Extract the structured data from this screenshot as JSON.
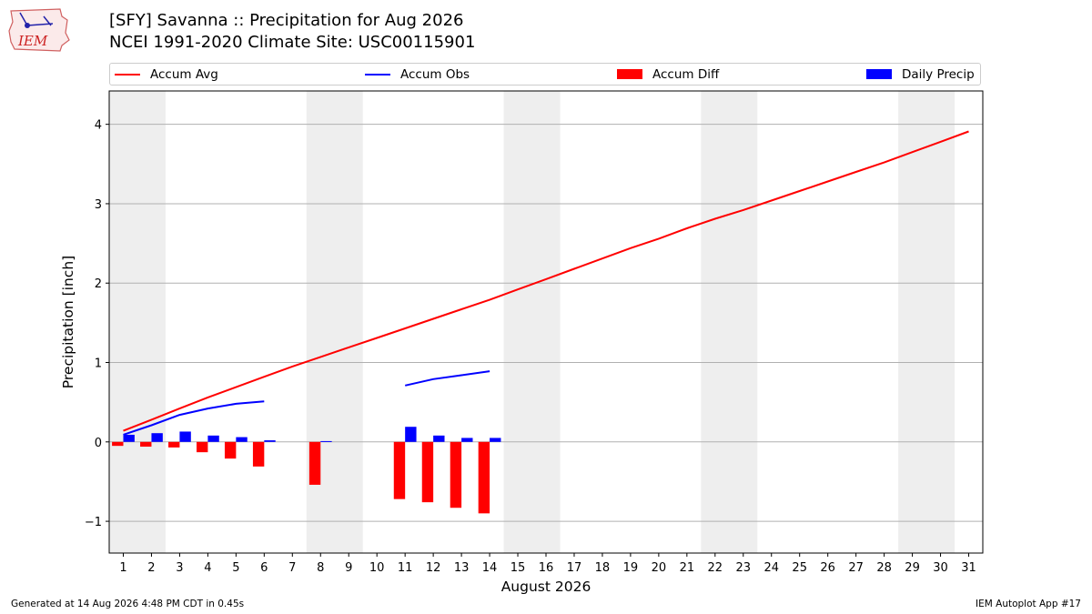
{
  "header": {
    "logo_text": "IEM",
    "title_line1": "[SFY] Savanna :: Precipitation for Aug 2026",
    "title_line2": "NCEI 1991-2020 Climate Site: USC00115901"
  },
  "footer": {
    "generated": "Generated at 14 Aug 2026 4:48 PM CDT in 0.45s",
    "app": "IEM Autoplot App #17"
  },
  "colors": {
    "accum_avg": "#ff0000",
    "accum_obs": "#0000ff",
    "accum_diff": "#ff0000",
    "daily_precip": "#0000ff",
    "weekend_band": "#eeeeee",
    "grid": "#b0b0b0"
  },
  "chart_data": {
    "type": "bar",
    "xlabel": "August 2026",
    "ylabel": "Precipitation [inch]",
    "xlim": [
      0.5,
      31.5
    ],
    "ylim": [
      -1.4,
      4.42
    ],
    "yticks": [
      -1,
      0,
      1,
      2,
      3,
      4
    ],
    "ytick_labels": [
      "−1",
      "0",
      "1",
      "2",
      "3",
      "4"
    ],
    "days": [
      1,
      2,
      3,
      4,
      5,
      6,
      7,
      8,
      9,
      10,
      11,
      12,
      13,
      14,
      15,
      16,
      17,
      18,
      19,
      20,
      21,
      22,
      23,
      24,
      25,
      26,
      27,
      28,
      29,
      30,
      31
    ],
    "weekend_days": [
      1,
      2,
      8,
      9,
      15,
      16,
      22,
      23,
      29,
      30
    ],
    "grid": "horizontal",
    "legend_position": "top",
    "legend": [
      "Accum Avg",
      "Accum Obs",
      "Accum Diff",
      "Daily Precip"
    ],
    "series": [
      {
        "name": "Accum Avg",
        "kind": "line",
        "x": [
          1,
          2,
          3,
          4,
          5,
          6,
          7,
          8,
          9,
          10,
          11,
          12,
          13,
          14,
          15,
          16,
          17,
          18,
          19,
          20,
          21,
          22,
          23,
          24,
          25,
          26,
          27,
          28,
          29,
          30,
          31
        ],
        "values": [
          0.14,
          0.28,
          0.42,
          0.56,
          0.69,
          0.82,
          0.95,
          1.07,
          1.19,
          1.31,
          1.43,
          1.55,
          1.67,
          1.79,
          1.92,
          2.05,
          2.18,
          2.31,
          2.44,
          2.56,
          2.69,
          2.81,
          2.92,
          3.04,
          3.16,
          3.28,
          3.4,
          3.52,
          3.65,
          3.78,
          3.91
        ]
      },
      {
        "name": "Accum Obs",
        "kind": "line",
        "x": [
          1,
          2,
          3,
          4,
          5,
          6,
          7,
          8,
          9,
          10,
          11,
          12,
          13,
          14
        ],
        "values": [
          0.09,
          0.21,
          0.34,
          0.42,
          0.48,
          0.51,
          null,
          null,
          null,
          null,
          0.71,
          0.79,
          0.84,
          0.89
        ]
      },
      {
        "name": "Accum Diff",
        "kind": "bar",
        "x": [
          1,
          2,
          3,
          4,
          5,
          6,
          8,
          11,
          12,
          13,
          14
        ],
        "values": [
          -0.05,
          -0.06,
          -0.07,
          -0.13,
          -0.21,
          -0.31,
          -0.54,
          -0.72,
          -0.76,
          -0.83,
          -0.9
        ]
      },
      {
        "name": "Daily Precip",
        "kind": "bar",
        "x": [
          1,
          2,
          3,
          4,
          5,
          6,
          8,
          11,
          12,
          13,
          14
        ],
        "values": [
          0.09,
          0.11,
          0.13,
          0.08,
          0.06,
          0.02,
          0.01,
          0.19,
          0.08,
          0.05,
          0.05
        ]
      }
    ]
  }
}
